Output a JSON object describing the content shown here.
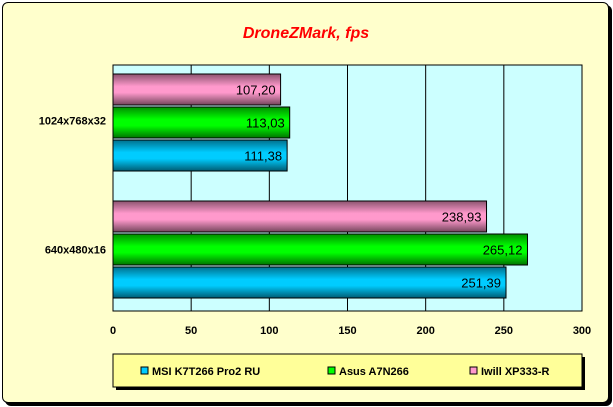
{
  "chart_data": {
    "type": "bar",
    "orientation": "horizontal",
    "title": "DroneZMark, fps",
    "categories": [
      "1024x768x32",
      "640x480x16"
    ],
    "series": [
      {
        "name": "MSI K7T266 Pro2 RU",
        "color": "#00CCFF",
        "values": [
          111.38,
          251.39
        ],
        "labels": [
          "111,38",
          "251,39"
        ]
      },
      {
        "name": "Asus A7N266",
        "color": "#00FF00",
        "values": [
          113.03,
          265.12
        ],
        "labels": [
          "113,03",
          "265,12"
        ]
      },
      {
        "name": "Iwill XP333-R",
        "color": "#FF99CC",
        "values": [
          107.2,
          238.93
        ],
        "labels": [
          "107,20",
          "238,93"
        ]
      }
    ],
    "xlim": [
      0,
      300
    ],
    "xticks": [
      "0",
      "50",
      "100",
      "150",
      "200",
      "250",
      "300"
    ],
    "grid": true,
    "legend_position": "bottom",
    "plot_bg": "#CCFFFF",
    "title_color": "#FF0000"
  }
}
